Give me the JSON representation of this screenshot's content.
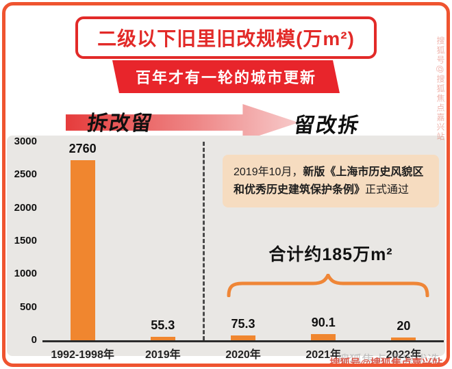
{
  "title": "二级以下旧里旧改规模(万m²)",
  "banner": "百年才有一轮的城市更新",
  "arrow": {
    "left_label": "拆改留",
    "right_label": "留改拆"
  },
  "note": {
    "prefix": "2019年10月，",
    "bold": "新版《上海市历史风貌区和优秀历史建筑保护条例》",
    "suffix": "正式通过"
  },
  "total_label": "合计约185万m²",
  "watermark": {
    "gray": "搜狐焦点·嘉兴优选",
    "red": "搜狐号@搜狐焦点嘉兴站",
    "side": "搜狐号@搜狐焦点嘉兴站"
  },
  "colors": {
    "frame_border": "#ef5430",
    "title_red": "#e22a28",
    "banner_red": "#e8252b",
    "bar_orange": "#f0862f",
    "note_bg": "#f6dcc0",
    "panel_gray": "#e9e7e4",
    "brace_orange": "#ef8637"
  },
  "chart_data": {
    "type": "bar",
    "title": "二级以下旧里旧改规模(万m²)",
    "categories": [
      "1992-1998年",
      "2019年",
      "2020年",
      "2021年",
      "2022年"
    ],
    "values": [
      2760,
      55.3,
      75.3,
      90.1,
      20
    ],
    "xlabel": "",
    "ylabel": "",
    "ylim": [
      0,
      3000
    ],
    "yticks": [
      0,
      500,
      1000,
      1500,
      2000,
      2500,
      3000
    ],
    "grid": false,
    "legend": false,
    "bar_color": "#f0862f",
    "annotations": [
      "合计约185万m²",
      "2019年10月，新版《上海市历史风貌区和优秀历史建筑保护条例》正式通过"
    ]
  }
}
